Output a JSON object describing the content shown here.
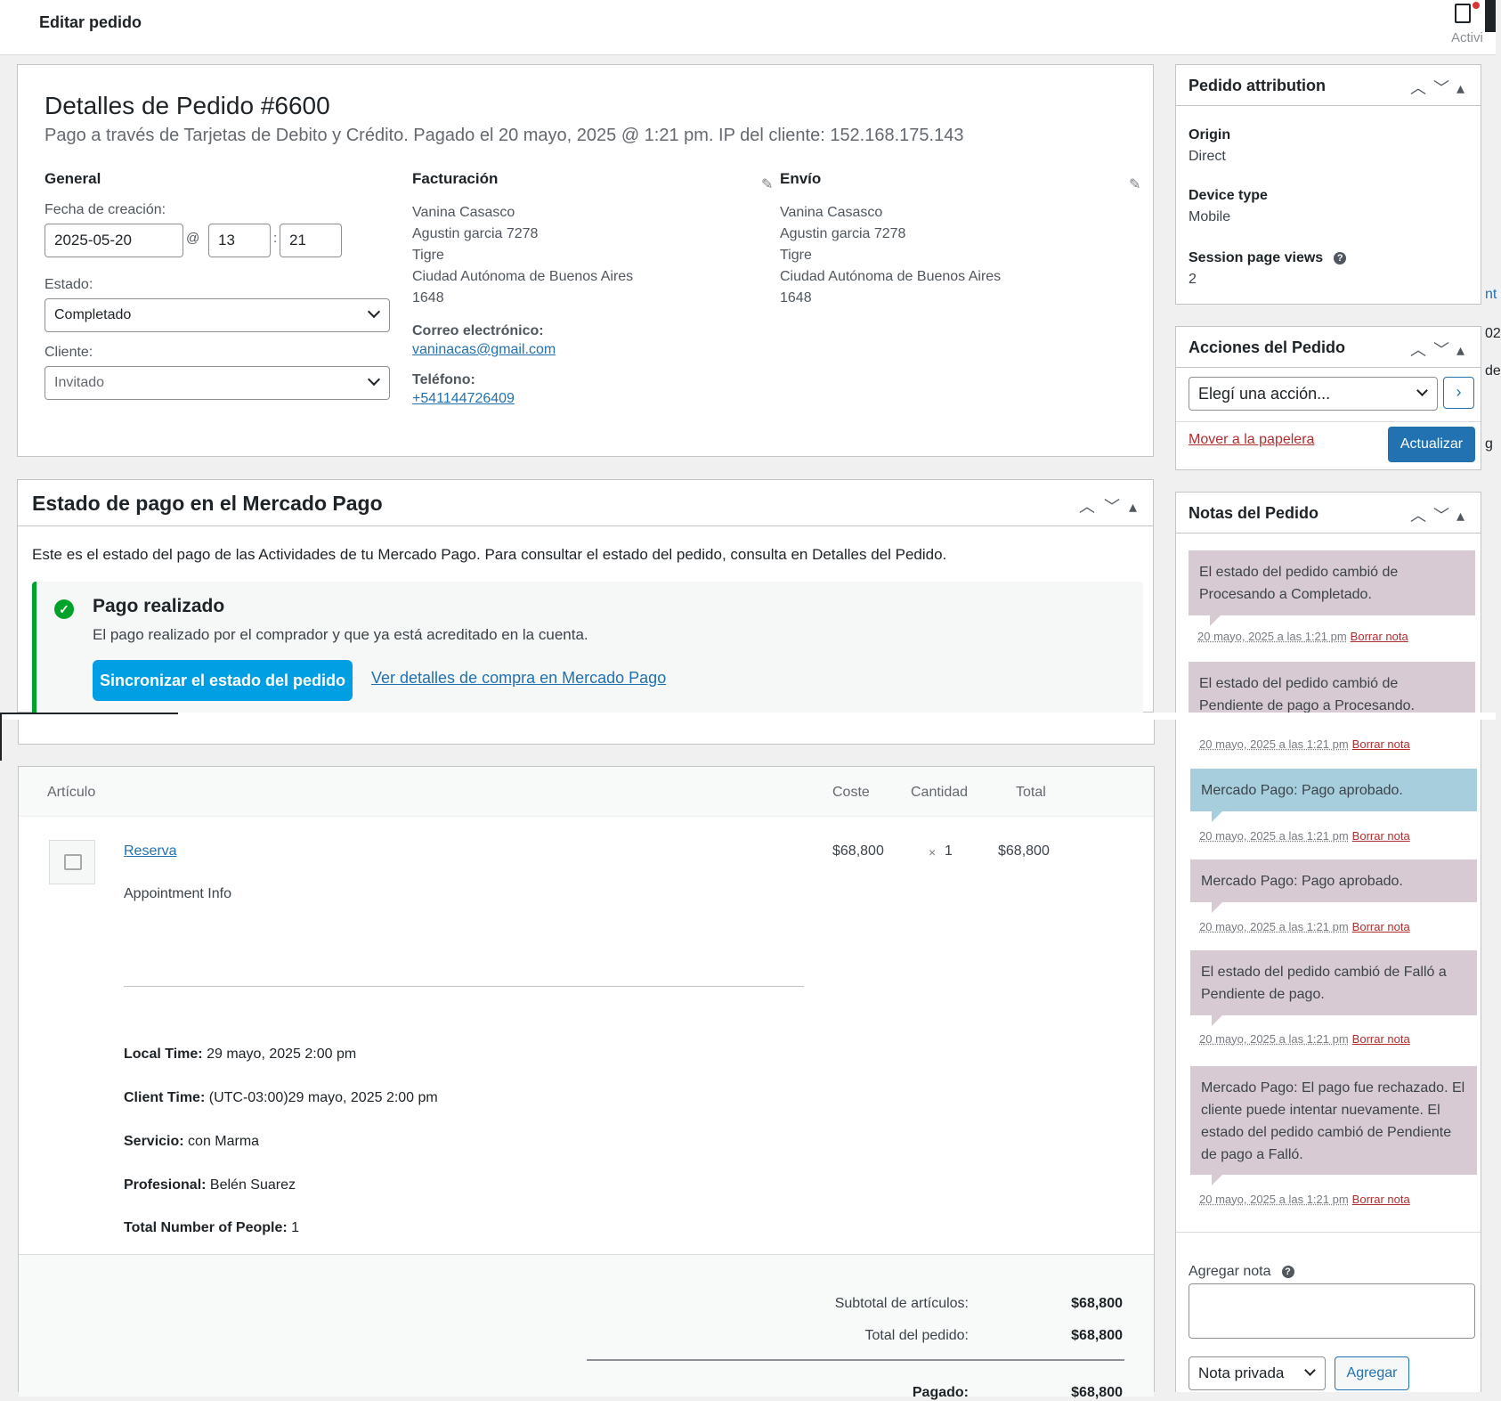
{
  "topbar": {
    "title": "Editar pedido",
    "activity_label": "Activi"
  },
  "order": {
    "title": "Detalles de Pedido #6600",
    "meta": "Pago a través de Tarjetas de Debito y Crédito. Pagado el 20 mayo, 2025 @ 1:21 pm. IP del cliente: 152.168.175.143",
    "general": {
      "heading": "General",
      "date_label": "Fecha de creación:",
      "date": "2025-05-20",
      "at": "@",
      "hour": "13",
      "colon": ":",
      "minute": "21",
      "status_label": "Estado:",
      "status": "Completado",
      "customer_label": "Cliente:",
      "customer": "Invitado"
    },
    "billing": {
      "heading": "Facturación",
      "lines": [
        "Vanina Casasco",
        "Agustin garcia 7278",
        "Tigre",
        "Ciudad Autónoma de Buenos Aires",
        "1648"
      ],
      "email_label": "Correo electrónico:",
      "email": "vaninacas@gmail.com",
      "phone_label": "Teléfono:",
      "phone": "+541144726409"
    },
    "shipping": {
      "heading": "Envío",
      "lines": [
        "Vanina Casasco",
        "Agustin garcia 7278",
        "Tigre",
        "Ciudad Autónoma de Buenos Aires",
        "1648"
      ]
    }
  },
  "mercadopago": {
    "heading": "Estado de pago en el Mercado Pago",
    "description": "Este es el estado del pago de las Actividades de tu Mercado Pago. Para consultar el estado del pedido, consulta en Detalles del Pedido.",
    "status_title": "Pago realizado",
    "status_desc": "El pago realizado por el comprador y que ya está acreditado en la cuenta.",
    "sync_button": "Sincronizar el estado del pedido",
    "details_link": "Ver detalles de compra en Mercado Pago"
  },
  "items": {
    "headers": {
      "item": "Artículo",
      "cost": "Coste",
      "qty": "Cantidad",
      "total": "Total"
    },
    "product": "Reserva",
    "cost": "$68,800",
    "qty_x": "×",
    "qty": "1",
    "total": "$68,800",
    "info": "Appointment Info",
    "meta": [
      {
        "label": "Local Time:",
        "value": "29 mayo, 2025 2:00 pm"
      },
      {
        "label": "Client Time:",
        "value": "(UTC-03:00)29 mayo, 2025 2:00 pm"
      },
      {
        "label": "Servicio:",
        "value": "con Marma"
      },
      {
        "label": "Profesional:",
        "value": "Belén Suarez"
      },
      {
        "label": "Total Number of People:",
        "value": "1"
      }
    ],
    "totals": {
      "subtotal_label": "Subtotal de artículos:",
      "subtotal": "$68,800",
      "order_total_label": "Total del pedido:",
      "order_total": "$68,800",
      "paid_label": "Pagado:",
      "paid": "$68,800"
    }
  },
  "attribution": {
    "heading": "Pedido attribution",
    "origin_label": "Origin",
    "origin": "Direct",
    "device_label": "Device type",
    "device": "Mobile",
    "views_label": "Session page views",
    "views": "2"
  },
  "actions": {
    "heading": "Acciones del Pedido",
    "select": "Elegí una acción...",
    "trash": "Mover a la papelera",
    "update": "Actualizar"
  },
  "notes": {
    "heading": "Notas del Pedido",
    "date": "20 mayo, 2025 a las 1:21 pm",
    "delete": "Borrar nota",
    "items": [
      "El estado del pedido cambió de Procesando a Completado.",
      "El estado del pedido cambió de Pendiente de pago a Procesando.",
      "Mercado Pago: Pago aprobado.",
      "Mercado Pago: Pago aprobado.",
      "El estado del pedido cambió de Falló a Pendiente de pago.",
      "Mercado Pago: El pago fue rechazado. El cliente puede intentar nuevamente. El estado del pedido cambió de Pendiente de pago a Falló."
    ],
    "add_label": "Agregar nota",
    "note_type": "Nota privada",
    "add_button": "Agregar"
  },
  "edge_fragments": [
    "nt",
    "02",
    "de",
    "g"
  ],
  "colors": {
    "accent": "#2271b1",
    "mp_blue": "#009ee3",
    "success": "#00a32a",
    "note": "#d7cad2",
    "note_system": "#a7cedc",
    "danger": "#b32d2e"
  }
}
